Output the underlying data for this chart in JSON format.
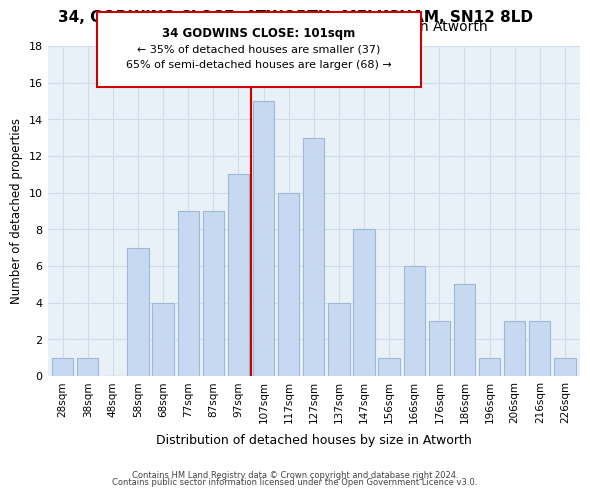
{
  "title": "34, GODWINS CLOSE, ATWORTH, MELKSHAM, SN12 8LD",
  "subtitle": "Size of property relative to detached houses in Atworth",
  "xlabel": "Distribution of detached houses by size in Atworth",
  "ylabel": "Number of detached properties",
  "bar_labels": [
    "28sqm",
    "38sqm",
    "48sqm",
    "58sqm",
    "68sqm",
    "77sqm",
    "87sqm",
    "97sqm",
    "107sqm",
    "117sqm",
    "127sqm",
    "137sqm",
    "147sqm",
    "156sqm",
    "166sqm",
    "176sqm",
    "186sqm",
    "196sqm",
    "206sqm",
    "216sqm",
    "226sqm"
  ],
  "bar_values": [
    1,
    1,
    0,
    7,
    4,
    9,
    9,
    11,
    15,
    10,
    13,
    4,
    8,
    1,
    6,
    3,
    5,
    1,
    3,
    3,
    1
  ],
  "bar_color": "#c6d9f0",
  "bar_edge_color": "#a0b8d8",
  "highlight_bar_index": 7,
  "highlight_line_color": "#cc0000",
  "ylim": [
    0,
    18
  ],
  "yticks": [
    0,
    2,
    4,
    6,
    8,
    10,
    12,
    14,
    16,
    18
  ],
  "annotation_title": "34 GODWINS CLOSE: 101sqm",
  "annotation_line1": "← 35% of detached houses are smaller (37)",
  "annotation_line2": "65% of semi-detached houses are larger (68) →",
  "annotation_box_color": "#ffffff",
  "annotation_box_edge": "#cc0000",
  "footer_line1": "Contains HM Land Registry data © Crown copyright and database right 2024.",
  "footer_line2": "Contains public sector information licensed under the Open Government Licence v3.0.",
  "background_color": "#ffffff",
  "grid_color": "#d0dde8",
  "title_fontsize": 11,
  "subtitle_fontsize": 10
}
